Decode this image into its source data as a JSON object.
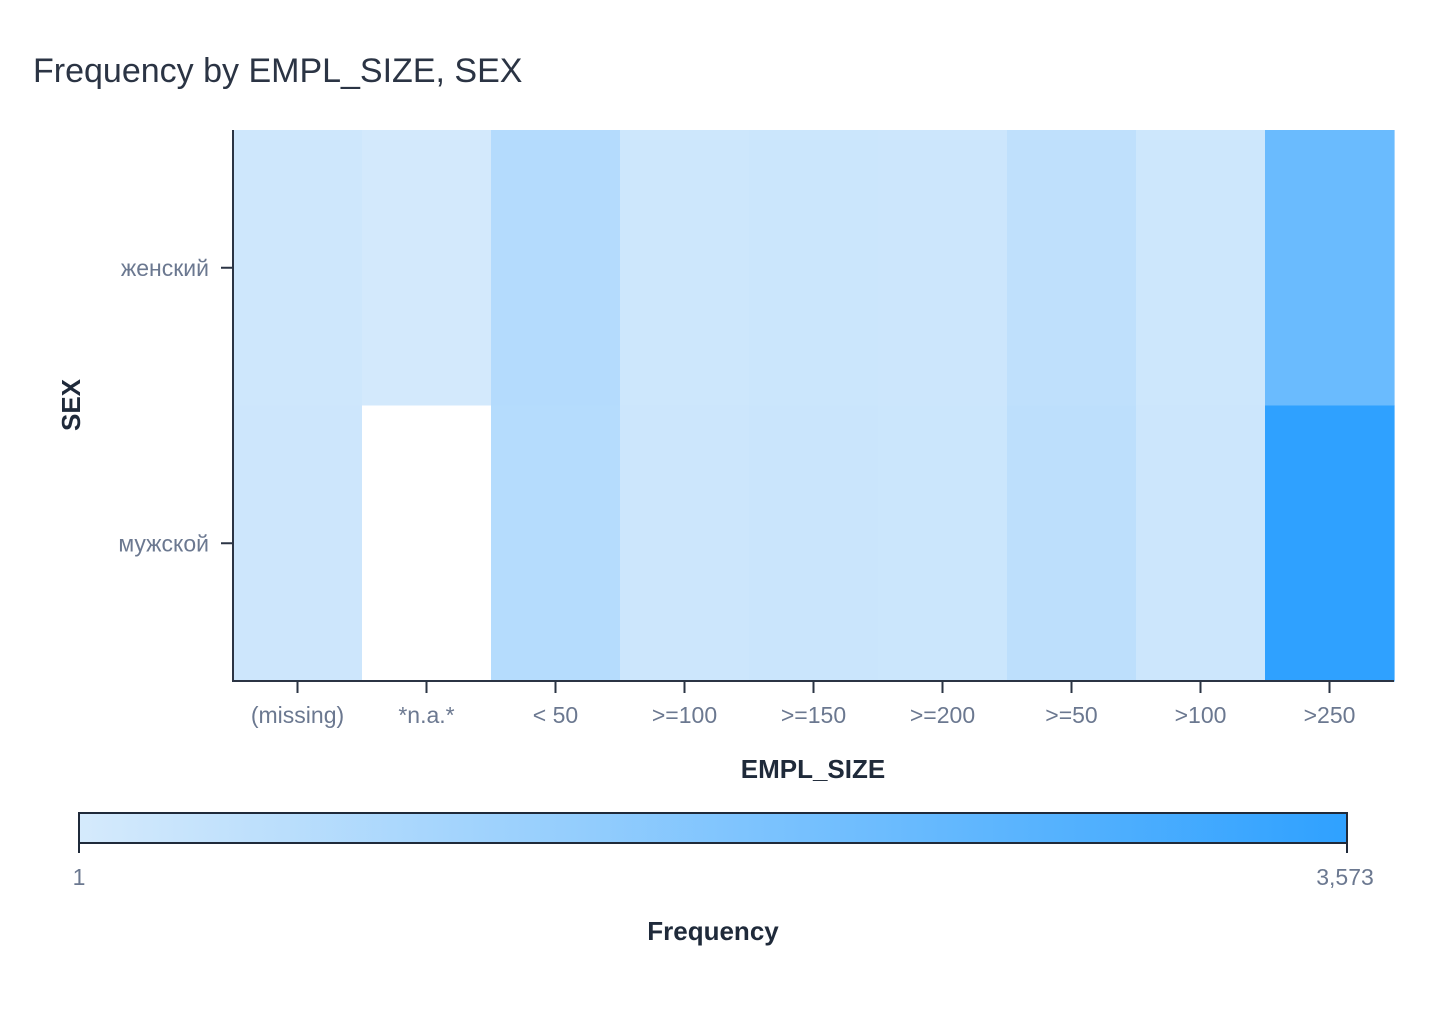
{
  "chart_data": {
    "type": "heatmap",
    "title": "Frequency by EMPL_SIZE, SEX",
    "xlabel": "EMPL_SIZE",
    "ylabel": "SEX",
    "x_categories": [
      "(missing)",
      "*n.a.*",
      "< 50",
      ">=100",
      ">=150",
      ">=200",
      ">=50",
      ">100",
      ">250"
    ],
    "y_categories": [
      "женский",
      "мужской"
    ],
    "values": [
      [
        160,
        40,
        720,
        170,
        210,
        200,
        480,
        170,
        2300
      ],
      [
        180,
        null,
        680,
        190,
        230,
        220,
        520,
        190,
        3573
      ]
    ],
    "colorbar": {
      "label": "Frequency",
      "min": 1,
      "max": 3573,
      "min_label": "1",
      "max_label": "3,573",
      "color_low": "#d5eafc",
      "color_high": "#2fa1ff"
    },
    "missing_color": "#ffffff",
    "legend_position": "bottom"
  }
}
